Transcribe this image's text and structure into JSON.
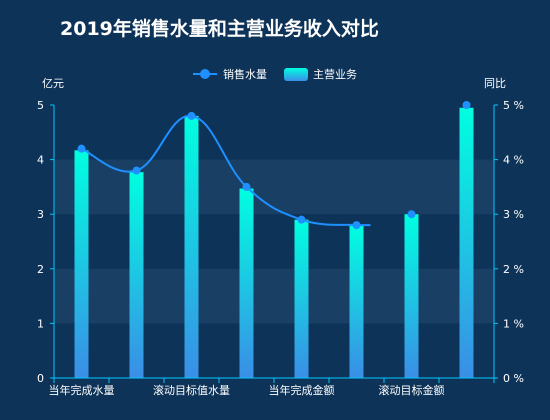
{
  "chart_data": {
    "type": "bar",
    "title": "2019年销售水量和主营业务收入对比",
    "categories": [
      "当年完成水量",
      "",
      "滚动目标值水量",
      "",
      "当年完成金额",
      "",
      "滚动目标金额",
      ""
    ],
    "series": [
      {
        "name": "销售水量",
        "type": "line",
        "axis": "left",
        "values": [
          4.2,
          3.8,
          4.8,
          3.5,
          2.9,
          2.8,
          3.0,
          5.0
        ],
        "color": "#1e90ff"
      },
      {
        "name": "主营业务",
        "type": "bar",
        "axis": "right",
        "values": [
          4.17,
          3.77,
          4.8,
          3.47,
          2.9,
          2.8,
          3.0,
          4.95
        ],
        "color_top": "#00ffe0",
        "color_bottom": "#3a8ee6"
      }
    ],
    "ylabel_left": "亿元",
    "ylabel_right": "同比",
    "ylim_left": [
      0,
      5
    ],
    "ylim_right": [
      0,
      5
    ],
    "yticks_left": [
      "0",
      "1",
      "2",
      "3",
      "4",
      "5"
    ],
    "yticks_right": [
      "0 %",
      "1 %",
      "2 %",
      "3 %",
      "4 %",
      "5 %"
    ],
    "line_smooth": true,
    "legend_position": "top-center",
    "grid": "horizontal-bands",
    "colors": {
      "background": "#0e3358",
      "band": "#1e4468",
      "axis": "#00c8ff",
      "text": "#ffffff"
    }
  }
}
